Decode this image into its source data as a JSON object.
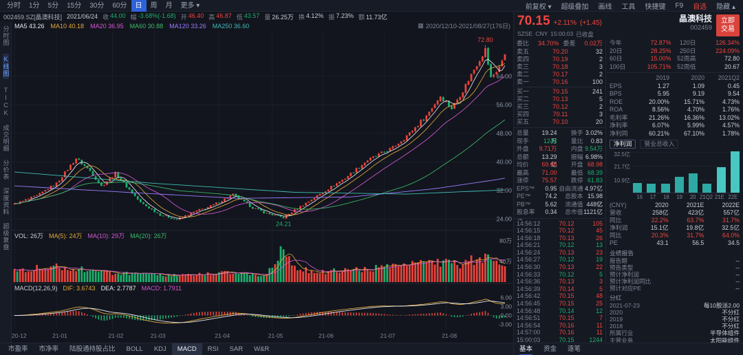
{
  "colors": {
    "up": "#e8453c",
    "down": "#1faf6e",
    "accent": "#2e62d9",
    "panel": "#171b26",
    "bg": "#12151d"
  },
  "toolbar": {
    "periods": [
      "分时",
      "1分",
      "5分",
      "15分",
      "30分",
      "60分",
      "日",
      "周",
      "月",
      "更多 ▾"
    ],
    "selected": "日",
    "right_items": [
      {
        "label": "前复权 ▾"
      },
      {
        "label": "超级叠加"
      },
      {
        "label": "画线"
      },
      {
        "label": "工具"
      },
      {
        "label": "快捷键"
      },
      {
        "label": "F9"
      },
      {
        "label": "自选",
        "accent": true
      },
      {
        "label": "隐藏 ▴"
      }
    ]
  },
  "info_bar": {
    "symbol": "002459.SZ[晶澳科技]",
    "date": "2021/06/24",
    "fields": [
      {
        "label": "收",
        "value": "44.00",
        "cls": "v-dn"
      },
      {
        "label": "幅",
        "value": "-3.68%(-1.68)",
        "cls": "v-dn"
      },
      {
        "label": "开",
        "value": "46.40",
        "cls": "v-up"
      },
      {
        "label": "高",
        "value": "46.87",
        "cls": "v-up"
      },
      {
        "label": "低",
        "value": "43.57",
        "cls": "v-dn"
      },
      {
        "label": "量",
        "value": "26.25万",
        "cls": "v-tx"
      },
      {
        "label": "换",
        "value": "4.12%",
        "cls": "v-tx"
      },
      {
        "label": "振",
        "value": "7.23%",
        "cls": "v-tx"
      },
      {
        "label": "额",
        "value": "11.73亿",
        "cls": "v-tx"
      }
    ],
    "range": "2020/12/10-2021/08/27(176日)"
  },
  "ma_labels": [
    {
      "label": "MA5",
      "value": "43.26",
      "color": "#e6e9ef"
    },
    {
      "label": "MA10",
      "value": "40.18",
      "color": "#e0a93e"
    },
    {
      "label": "MA20",
      "value": "36.95",
      "color": "#d558d5"
    },
    {
      "label": "MA60",
      "value": "30.88",
      "color": "#3dbb6a"
    },
    {
      "label": "MA120",
      "value": "33.26",
      "color": "#9a7bff"
    },
    {
      "label": "MA250",
      "value": "36.60",
      "color": "#3fbdb7"
    }
  ],
  "sidebar": [
    {
      "label": "分时图",
      "active": false
    },
    {
      "label": "K线图",
      "active": true
    },
    {
      "label": "TICK",
      "active": false
    },
    {
      "label": "成交明细",
      "active": false
    },
    {
      "label": "分价表",
      "active": false
    },
    {
      "label": "深度资料",
      "active": false
    },
    {
      "label": "超级复盘",
      "active": false
    }
  ],
  "chart": {
    "days": 176,
    "price_max": 76.5,
    "price_min": 21.0,
    "y_ticks": [
      {
        "v": 64,
        "label": "64.00"
      },
      {
        "v": 56,
        "label": "56.00"
      },
      {
        "v": 48,
        "label": "48.00"
      },
      {
        "v": 40,
        "label": "40.00"
      },
      {
        "v": 32,
        "label": "32.00"
      },
      {
        "v": 24,
        "label": "24.00"
      }
    ],
    "close_anchors": [
      [
        0,
        28.2
      ],
      [
        8,
        30.5
      ],
      [
        15,
        34.0
      ],
      [
        22,
        41.0
      ],
      [
        27,
        37.5
      ],
      [
        31,
        33.2
      ],
      [
        36,
        36.8
      ],
      [
        45,
        28.6
      ],
      [
        52,
        25.2
      ],
      [
        58,
        23.9
      ],
      [
        64,
        26.0
      ],
      [
        70,
        27.6
      ],
      [
        78,
        30.8
      ],
      [
        85,
        27.2
      ],
      [
        90,
        25.6
      ],
      [
        96,
        24.4
      ],
      [
        103,
        28.0
      ],
      [
        110,
        31.5
      ],
      [
        118,
        35.5
      ],
      [
        126,
        40.5
      ],
      [
        135,
        44.0
      ],
      [
        141,
        48.0
      ],
      [
        147,
        53.0
      ],
      [
        152,
        58.5
      ],
      [
        156,
        55.0
      ],
      [
        160,
        60.0
      ],
      [
        164,
        66.0
      ],
      [
        168,
        71.5
      ],
      [
        170,
        63.5
      ],
      [
        172,
        65.5
      ],
      [
        174,
        68.0
      ],
      [
        176,
        70.15
      ]
    ],
    "ma120_anchors": [
      [
        0,
        33.3
      ],
      [
        40,
        31.5
      ],
      [
        80,
        29.8
      ],
      [
        120,
        30.2
      ],
      [
        150,
        32.5
      ],
      [
        176,
        35.5
      ]
    ],
    "ma250_anchors": [
      [
        0,
        37.2
      ],
      [
        50,
        34.0
      ],
      [
        100,
        31.5
      ],
      [
        140,
        31.0
      ],
      [
        176,
        32.2
      ]
    ],
    "peak": {
      "day": 168,
      "label": "72.80"
    },
    "low": {
      "day": 96,
      "label": "24.21"
    },
    "x_labels": [
      {
        "day": 0,
        "label": "20-12"
      },
      {
        "day": 15,
        "label": "21-01"
      },
      {
        "day": 35,
        "label": "21-02"
      },
      {
        "day": 50,
        "label": "21-03"
      },
      {
        "day": 73,
        "label": "21-04"
      },
      {
        "day": 92,
        "label": "21-05"
      },
      {
        "day": 110,
        "label": "21-06"
      },
      {
        "day": 132,
        "label": "21-07"
      },
      {
        "day": 154,
        "label": "21-08"
      }
    ]
  },
  "volume_pane": {
    "header": [
      {
        "label": "VOL:",
        "value": "26万",
        "color": "#c8cdd6"
      },
      {
        "label": "MA(5):",
        "value": "24万",
        "color": "#e0a93e"
      },
      {
        "label": "MA(10):",
        "value": "29万",
        "color": "#d558d5"
      },
      {
        "label": "MA(20):",
        "value": "26万",
        "color": "#3dbb6a"
      }
    ],
    "y_ticks": [
      {
        "frac": 0,
        "label": "80万"
      },
      {
        "frac": 0.5,
        "label": "40万"
      }
    ],
    "max": 85,
    "anchors": [
      [
        0,
        26
      ],
      [
        15,
        34
      ],
      [
        30,
        22
      ],
      [
        45,
        16
      ],
      [
        60,
        14
      ],
      [
        75,
        20
      ],
      [
        90,
        14
      ],
      [
        96,
        78
      ],
      [
        99,
        30
      ],
      [
        110,
        22
      ],
      [
        120,
        26
      ],
      [
        130,
        30
      ],
      [
        140,
        34
      ],
      [
        150,
        44
      ],
      [
        158,
        36
      ],
      [
        164,
        48
      ],
      [
        168,
        56
      ],
      [
        171,
        40
      ],
      [
        176,
        26
      ]
    ]
  },
  "macd_pane": {
    "title": "MACD(12,26,9)",
    "header": [
      {
        "label": "DIF:",
        "value": "3.6743",
        "color": "#e0a93e"
      },
      {
        "label": "DEA:",
        "value": "2.7787",
        "color": "#e6e9ef"
      },
      {
        "label": "MACD:",
        "value": "1.7911",
        "color": "#d558d5"
      }
    ],
    "y_ticks": [
      {
        "v": 6,
        "label": "6.00"
      },
      {
        "v": 3,
        "label": "3.00"
      },
      {
        "v": 0,
        "label": "0.00"
      },
      {
        "v": -3,
        "label": "-3.00"
      }
    ]
  },
  "indicator_tabs": {
    "items": [
      "市盈率",
      "市净率",
      "陆股通持股占比",
      "BOLL",
      "KDJ",
      "MACD",
      "RSI",
      "SAR",
      "W&R"
    ],
    "selected": "MACD"
  },
  "quote": {
    "price": "70.15",
    "change_pct": "+2.11%",
    "change_abs": "(+1.45)",
    "name": "晶澳科技",
    "code": "002459",
    "trade_button": [
      "立即",
      "交易"
    ],
    "exchange": "SZSE",
    "currency": "CNY",
    "time": "15:00:03",
    "session": "已收盘",
    "order_book": {
      "summary": {
        "l1": "委比",
        "v1": "34.70%",
        "l2": "委差",
        "v2": "0.02万"
      },
      "asks": [
        {
          "label": "卖五",
          "price": "70.20",
          "qty": "32"
        },
        {
          "label": "卖四",
          "price": "70.19",
          "qty": "2"
        },
        {
          "label": "卖三",
          "price": "70.18",
          "qty": "3"
        },
        {
          "label": "卖二",
          "price": "70.17",
          "qty": "2"
        },
        {
          "label": "卖一",
          "price": "70.16",
          "qty": "100"
        }
      ],
      "bids": [
        {
          "label": "买一",
          "price": "70.15",
          "qty": "241"
        },
        {
          "label": "买二",
          "price": "70.13",
          "qty": "5"
        },
        {
          "label": "买三",
          "price": "70.12",
          "qty": "2"
        },
        {
          "label": "买四",
          "price": "70.11",
          "qty": "3"
        },
        {
          "label": "买五",
          "price": "70.10",
          "qty": "20"
        }
      ]
    },
    "stats": [
      {
        "l1": "总量",
        "v1": "19.24万",
        "c1": "v-tx",
        "l2": "换手",
        "v2": "3.02%",
        "c2": "v-tx"
      },
      {
        "l1": "现手",
        "v1": "1244",
        "c1": "v-dn",
        "l2": "量比",
        "v2": "0.83",
        "c2": "v-tx"
      },
      {
        "l1": "外盘",
        "v1": "9.71万",
        "c1": "v-up",
        "l2": "内盘",
        "v2": "9.54万",
        "c2": "v-dn"
      },
      {
        "l1": "总额",
        "v1": "13.29亿",
        "c1": "v-tx",
        "l2": "振幅",
        "v2": "6.98%",
        "c2": "v-tx"
      },
      {
        "l1": "均价",
        "v1": "69.08",
        "c1": "v-up",
        "l2": "开盘",
        "v2": "68.98",
        "c2": "v-up"
      },
      {
        "l1": "最高",
        "v1": "71.00",
        "c1": "v-up",
        "l2": "最低",
        "v2": "68.39",
        "c2": "v-dn"
      },
      {
        "l1": "涨停",
        "v1": "75.57",
        "c1": "v-up",
        "l2": "跌停",
        "v2": "61.83",
        "c2": "v-dn"
      },
      {
        "l1": "EPS™",
        "v1": "0.95",
        "c1": "v-tx",
        "l2": "自由流通",
        "v2": "4.97亿",
        "c2": "v-tx"
      },
      {
        "l1": "PE™",
        "v1": "74.2",
        "c1": "v-tx",
        "l2": "总股本",
        "v2": "15.98亿",
        "c2": "v-tx"
      },
      {
        "l1": "PB™",
        "v1": "5.62",
        "c1": "v-tx",
        "l2": "流通值",
        "v2": "448亿",
        "c2": "v-tx"
      },
      {
        "l1": "股息率™",
        "v1": "0.34",
        "c1": "v-tx",
        "l2": "总市值",
        "v2": "1121亿",
        "c2": "v-tx"
      }
    ],
    "ticks": [
      {
        "time": "14:56:12",
        "price": "70.12",
        "qty": "105",
        "cls": "v-up"
      },
      {
        "time": "14:56:15",
        "price": "70.12",
        "qty": "45",
        "cls": "v-up"
      },
      {
        "time": "14:56:18",
        "price": "70.13",
        "qty": "26",
        "cls": "v-up"
      },
      {
        "time": "14:56:21",
        "price": "70.12",
        "qty": "13",
        "cls": "v-dn"
      },
      {
        "time": "14:56:24",
        "price": "70.13",
        "qty": "23",
        "cls": "v-up"
      },
      {
        "time": "14:56:27",
        "price": "70.12",
        "qty": "19",
        "cls": "v-dn"
      },
      {
        "time": "14:56:30",
        "price": "70.13",
        "qty": "22",
        "cls": "v-up"
      },
      {
        "time": "14:56:33",
        "price": "70.12",
        "qty": "5",
        "cls": "v-dn"
      },
      {
        "time": "14:56:36",
        "price": "70.13",
        "qty": "3",
        "cls": "v-up"
      },
      {
        "time": "14:56:39",
        "price": "70.14",
        "qty": "5",
        "cls": "v-up"
      },
      {
        "time": "14:56:42",
        "price": "70.15",
        "qty": "48",
        "cls": "v-up"
      },
      {
        "time": "14:56:45",
        "price": "70.15",
        "qty": "25",
        "cls": "v-up"
      },
      {
        "time": "14:56:48",
        "price": "70.14",
        "qty": "12",
        "cls": "v-dn"
      },
      {
        "time": "14:56:51",
        "price": "70.15",
        "qty": "7",
        "cls": "v-up"
      },
      {
        "time": "14:56:54",
        "price": "70.16",
        "qty": "11",
        "cls": "v-up"
      },
      {
        "time": "14:57:00",
        "price": "70.16",
        "qty": "11",
        "cls": "v-up"
      },
      {
        "time": "15:00:03",
        "price": "70.15",
        "qty": "1244",
        "cls": "v-dn"
      }
    ],
    "performance": [
      {
        "l1": "今年",
        "v1": "72.87%",
        "c1": "v-up",
        "l2": "120日",
        "v2": "126.34%",
        "c2": "v-up"
      },
      {
        "l1": "20日",
        "v1": "28.25%",
        "c1": "v-up",
        "l2": "250日",
        "v2": "224.09%",
        "c2": "v-up"
      },
      {
        "l1": "60日",
        "v1": "15.00%",
        "c1": "v-up",
        "l2": "52周高",
        "v2": "72.80",
        "c2": "v-tx"
      },
      {
        "l1": "100日",
        "v1": "105.71%",
        "c1": "v-up",
        "l2": "52周低",
        "v2": "20.67",
        "c2": "v-tx"
      }
    ],
    "financials": {
      "headers": [
        "",
        "2019",
        "2020",
        "2021Q2"
      ],
      "rows": [
        {
          "label": "EPS",
          "values": [
            "1.27",
            "1.09",
            "0.45"
          ]
        },
        {
          "label": "BPS",
          "values": [
            "5.95",
            "9.19",
            "9.54"
          ]
        },
        {
          "label": "ROE",
          "values": [
            "20.00%",
            "15.71%",
            "4.73%"
          ]
        },
        {
          "label": "ROA",
          "values": [
            "8.56%",
            "4.70%",
            "1.76%"
          ]
        },
        {
          "label": "毛利率",
          "values": [
            "21.26%",
            "16.36%",
            "13.02%"
          ]
        },
        {
          "label": "净利率",
          "values": [
            "6.07%",
            "5.99%",
            "4.57%"
          ]
        },
        {
          "label": "净利同",
          "values": [
            "60.21%",
            "67.10%",
            "1.78%"
          ]
        }
      ]
    },
    "profit_chart": {
      "tabs": [
        "净利润",
        "营业总收入"
      ],
      "selected": "净利润",
      "y_ticks": [
        {
          "v": 32.5,
          "label": "32.5亿"
        },
        {
          "v": 21.7,
          "label": "21.7亿"
        },
        {
          "v": 10.9,
          "label": "10.9亿"
        }
      ],
      "scale_max": 32.5,
      "categories": [
        "16",
        "17",
        "18",
        "19",
        "20",
        "21Q2",
        "21E",
        "22E"
      ],
      "values": [
        7.4,
        7.2,
        7.0,
        12.5,
        15.1,
        7.1,
        19.8,
        32.5
      ],
      "bar_color": "#2fa9a4",
      "estimate_color": "#49c7c2"
    },
    "forecast": {
      "headers": [
        "(CNY)",
        "2020",
        "2021E",
        "2022E"
      ],
      "rows": [
        {
          "label": "营收",
          "values": [
            "258亿",
            "423亿",
            "557亿"
          ],
          "cls": "v-tx"
        },
        {
          "label": "同比",
          "values": [
            "22.2%",
            "63.7%",
            "31.7%"
          ],
          "cls": "v-up"
        },
        {
          "label": "净利润",
          "values": [
            "15.1亿",
            "19.8亿",
            "32.5亿"
          ],
          "cls": "v-tx"
        },
        {
          "label": "同比",
          "values": [
            "20.3%",
            "31.7%",
            "64.0%"
          ],
          "cls": "v-up"
        },
        {
          "label": "PE",
          "values": [
            "43.1",
            "56.5",
            "34.5"
          ],
          "cls": "v-tx"
        }
      ]
    },
    "report": {
      "title": "业绩报告",
      "rows": [
        {
          "label": "报告期",
          "value": "--"
        },
        {
          "label": "预告类型",
          "value": "--"
        },
        {
          "label": "预计净利润",
          "value": "--"
        },
        {
          "label": "预计净利润同比",
          "value": "--"
        },
        {
          "label": "预计对应PE",
          "value": "--"
        }
      ]
    },
    "dividend": {
      "title": "分红",
      "rows": [
        {
          "label": "2021-07-23",
          "value": "每10股派2.00"
        },
        {
          "label": "2020",
          "value": "不分红"
        },
        {
          "label": "2019",
          "value": "不分红"
        },
        {
          "label": "2018",
          "value": "不分红"
        }
      ]
    },
    "industry": {
      "label": "所属行业",
      "value": "半导体组件"
    },
    "business": {
      "label": "主营业务",
      "value": "太阳能组件"
    },
    "bottom_tabs": {
      "items": [
        "基本",
        "资金",
        "逐笔"
      ],
      "selected": "基本"
    }
  }
}
